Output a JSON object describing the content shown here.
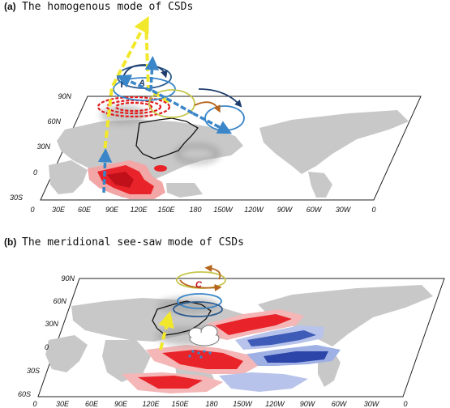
{
  "panels": [
    {
      "label": "(a)",
      "title": "The homogenous mode of CSDs",
      "lat_ticks": [
        "90N",
        "60N",
        "30N",
        "0",
        "30S"
      ],
      "lon_ticks": [
        "0",
        "30E",
        "60E",
        "90E",
        "120E",
        "150E",
        "180",
        "150W",
        "120W",
        "90W",
        "60W",
        "30W",
        "0"
      ]
    },
    {
      "label": "(b)",
      "title": "The meridional see-saw mode of CSDs",
      "lat_ticks": [
        "90N",
        "60N",
        "30N",
        "0",
        "30S",
        "60S"
      ],
      "lon_ticks": [
        "0",
        "30E",
        "60E",
        "90E",
        "120E",
        "150E",
        "180",
        "150W",
        "120W",
        "90W",
        "60W",
        "30W",
        "0"
      ]
    }
  ],
  "symbols": {
    "circulation_letters": [
      "A",
      "C"
    ]
  },
  "colors": {
    "land": "#c8c8c8",
    "positive_anomaly": "#e8232a",
    "negative_anomaly": "#2b45a8",
    "wave_arrow": "#f2e82b",
    "flow_arrow": "#3a86c8",
    "cold_dashed": "#e11b1b"
  }
}
